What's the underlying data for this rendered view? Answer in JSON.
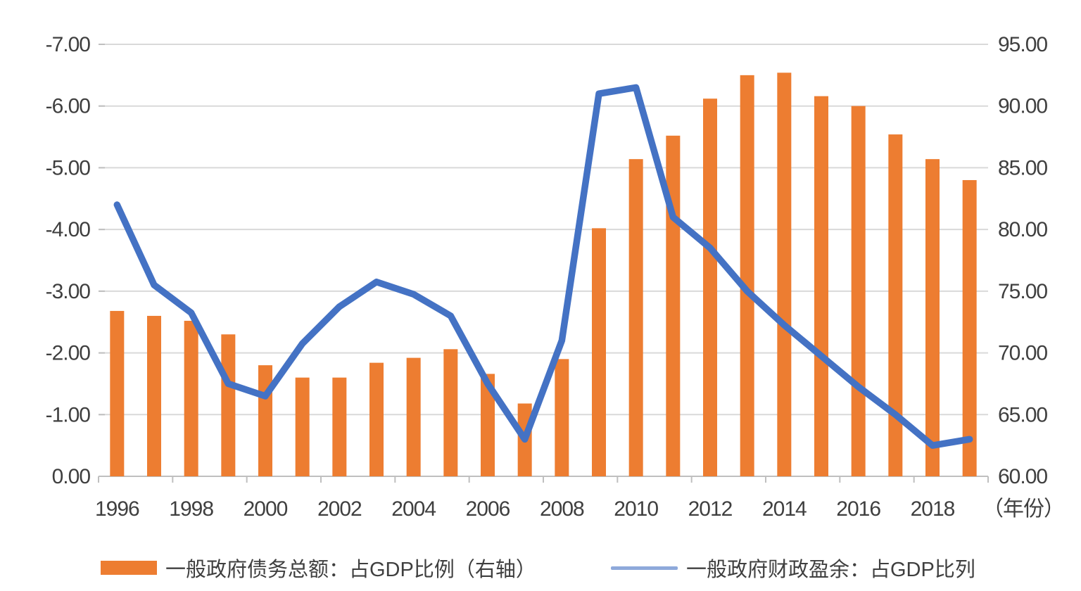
{
  "chart_data": {
    "type": "bar",
    "subtype": "combo-bar-line-dual-axis",
    "title": "",
    "categories": [
      1996,
      1997,
      1998,
      1999,
      2000,
      2001,
      2002,
      2003,
      2004,
      2005,
      2006,
      2007,
      2008,
      2009,
      2010,
      2011,
      2012,
      2013,
      2014,
      2015,
      2016,
      2017,
      2018,
      2019
    ],
    "series": [
      {
        "name": "一般政府债务总额：占GDP比例（右轴）",
        "type": "bar",
        "axis": "right",
        "values": [
          73.4,
          73.0,
          72.6,
          71.5,
          69.0,
          68.0,
          68.0,
          69.2,
          69.6,
          70.3,
          68.3,
          65.9,
          69.5,
          80.1,
          85.7,
          87.6,
          90.6,
          92.5,
          92.7,
          90.8,
          90.0,
          87.7,
          85.7,
          84.0
        ]
      },
      {
        "name": "一般政府财政盈余：占GDP比列",
        "type": "line",
        "axis": "left",
        "values": [
          -4.4,
          -3.1,
          -2.65,
          -1.5,
          -1.3,
          -2.15,
          -2.75,
          -3.15,
          -2.95,
          -2.6,
          -1.5,
          -0.6,
          -2.2,
          -6.2,
          -6.3,
          -4.2,
          -3.7,
          -3.0,
          -2.45,
          -1.95,
          -1.45,
          -1.0,
          -0.5,
          -0.6
        ]
      }
    ],
    "left_axis": {
      "tick_labels": [
        "-7.00",
        "-6.00",
        "-5.00",
        "-4.00",
        "-3.00",
        "-2.00",
        "-1.00",
        "0.00"
      ],
      "top_value": -7,
      "bottom_value": 0,
      "inverted": true
    },
    "right_axis": {
      "tick_labels": [
        "95.00",
        "90.00",
        "85.00",
        "80.00",
        "75.00",
        "70.00",
        "65.00",
        "60.00"
      ],
      "top_value": 95,
      "bottom_value": 60
    },
    "x_axis": {
      "tick_labels": [
        "1996",
        "1998",
        "2000",
        "2002",
        "2004",
        "2006",
        "2008",
        "2010",
        "2012",
        "2014",
        "2016",
        "2018"
      ],
      "label_interval": 2,
      "unit_label": "（年份）"
    },
    "legend_position": "bottom",
    "grid": true
  },
  "colors": {
    "bar": "#ED7D31",
    "line": "#4472C4",
    "legend_line_swatch": "#8EA9DB",
    "gridline": "#D9D9D9",
    "axis": "#BFBFBF",
    "text": "#3F3F3F"
  }
}
